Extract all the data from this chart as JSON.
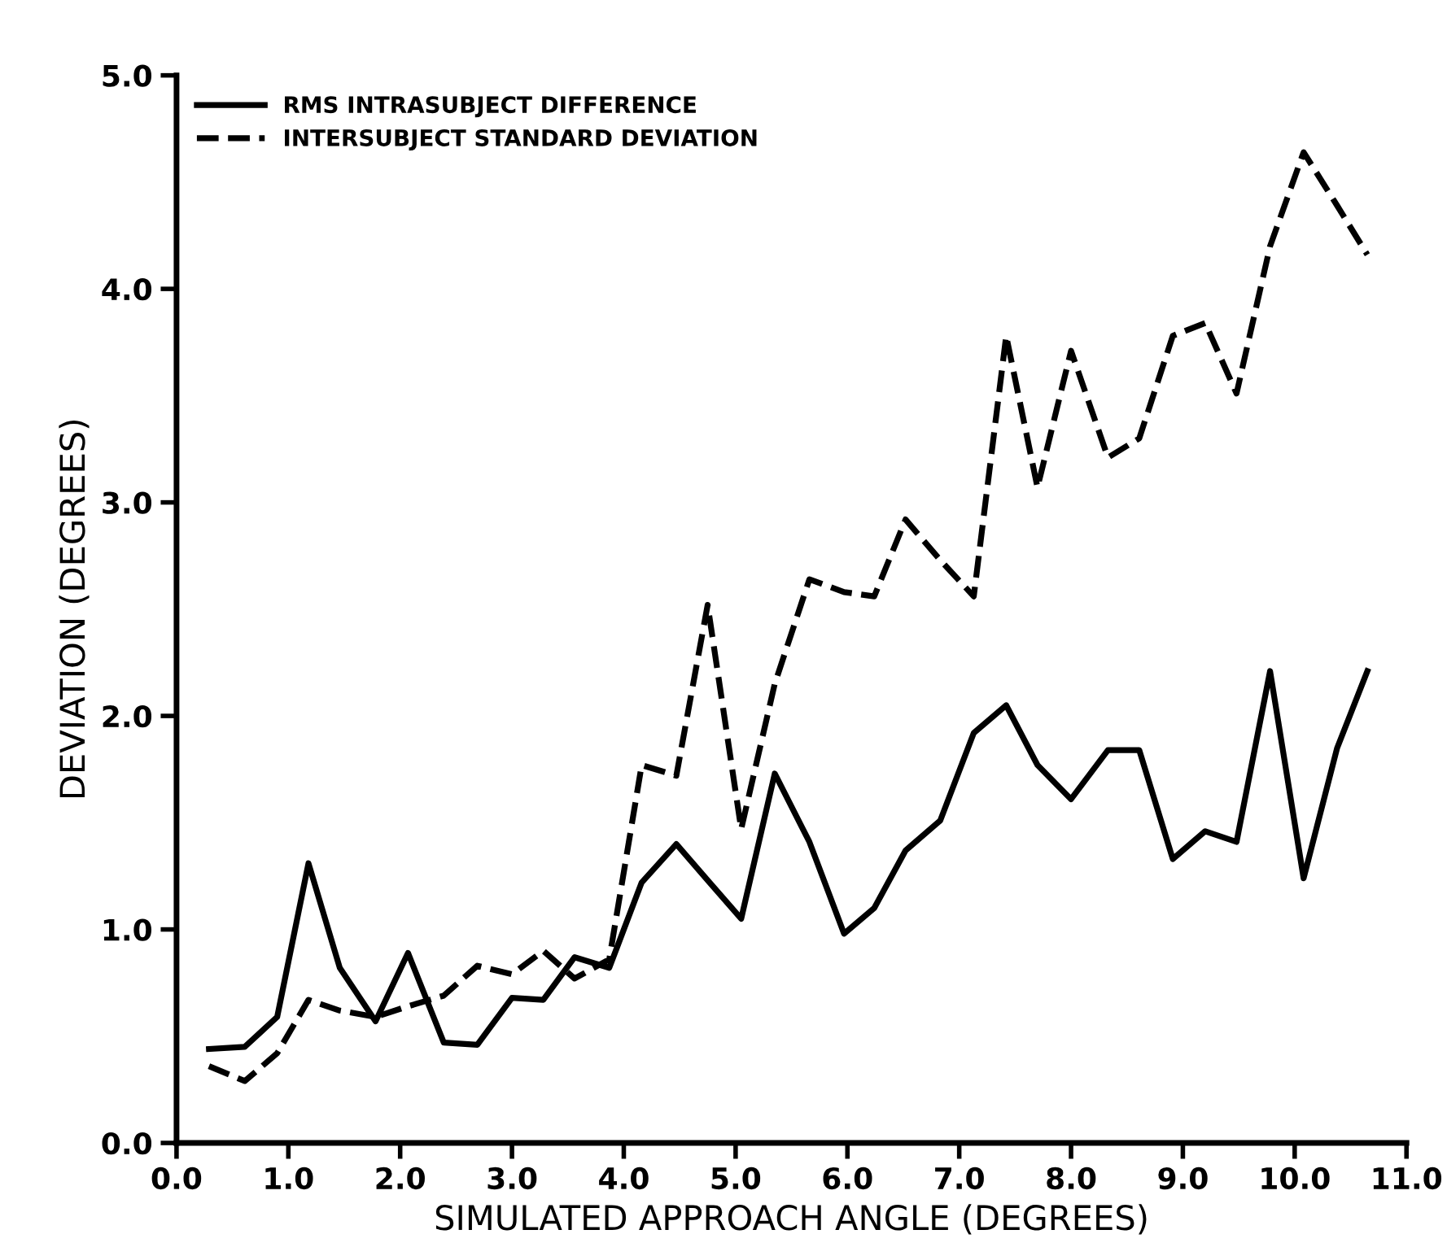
{
  "chart_data": {
    "type": "line",
    "xlabel": "SIMULATED APPROACH ANGLE (DEGREES)",
    "ylabel": "DEVIATION (DEGREES)",
    "x": [
      0.29,
      0.61,
      0.9,
      1.18,
      1.46,
      1.78,
      2.07,
      2.39,
      2.69,
      3.0,
      3.28,
      3.56,
      3.87,
      4.16,
      4.47,
      4.75,
      5.05,
      5.35,
      5.66,
      5.97,
      6.24,
      6.52,
      6.83,
      7.13,
      7.42,
      7.7,
      8.0,
      8.33,
      8.61,
      8.91,
      9.2,
      9.48,
      9.78,
      10.08,
      10.38,
      10.65
    ],
    "series": [
      {
        "name": "RMS INTRASUBJECT DIFFERENCE",
        "color": "#000000",
        "line_style": "solid",
        "values": [
          0.44,
          0.45,
          0.59,
          1.31,
          0.82,
          0.57,
          0.89,
          0.47,
          0.46,
          0.68,
          0.67,
          0.87,
          0.82,
          1.22,
          1.4,
          1.23,
          1.05,
          1.73,
          1.41,
          0.98,
          1.1,
          1.37,
          1.51,
          1.92,
          2.05,
          1.77,
          1.61,
          1.84,
          1.84,
          1.33,
          1.46,
          1.41,
          2.21,
          1.24,
          1.85,
          2.21
        ]
      },
      {
        "name": "INTERSUBJECT STANDARD DEVIATION",
        "color": "#000000",
        "line_style": "dashed",
        "values": [
          0.36,
          0.29,
          0.42,
          0.67,
          0.62,
          0.59,
          0.64,
          0.69,
          0.83,
          0.79,
          0.9,
          0.77,
          0.86,
          1.77,
          1.72,
          2.52,
          1.47,
          2.15,
          2.64,
          2.58,
          2.56,
          2.92,
          2.73,
          2.56,
          3.78,
          3.07,
          3.71,
          3.21,
          3.3,
          3.78,
          3.84,
          3.51,
          4.2,
          4.64,
          4.39,
          4.16
        ]
      }
    ],
    "xlim": [
      0,
      11
    ],
    "ylim": [
      0,
      5
    ],
    "xticks": [
      {
        "value": 0,
        "label": "0.0"
      },
      {
        "value": 1,
        "label": "1.0"
      },
      {
        "value": 2,
        "label": "2.0"
      },
      {
        "value": 3,
        "label": "3.0"
      },
      {
        "value": 4,
        "label": "4.0"
      },
      {
        "value": 5,
        "label": "5.0"
      },
      {
        "value": 6,
        "label": "6.0"
      },
      {
        "value": 7,
        "label": "7.0"
      },
      {
        "value": 8,
        "label": "8.0"
      },
      {
        "value": 9,
        "label": "9.0"
      },
      {
        "value": 10,
        "label": "10.0"
      },
      {
        "value": 11,
        "label": "11.0"
      }
    ],
    "yticks": [
      {
        "value": 0,
        "label": "0.0"
      },
      {
        "value": 1,
        "label": "1.0"
      },
      {
        "value": 2,
        "label": "2.0"
      },
      {
        "value": 3,
        "label": "3.0"
      },
      {
        "value": 4,
        "label": "4.0"
      },
      {
        "value": 5,
        "label": "5.0"
      }
    ],
    "grid": false,
    "legend": "top left",
    "marker": "none"
  }
}
